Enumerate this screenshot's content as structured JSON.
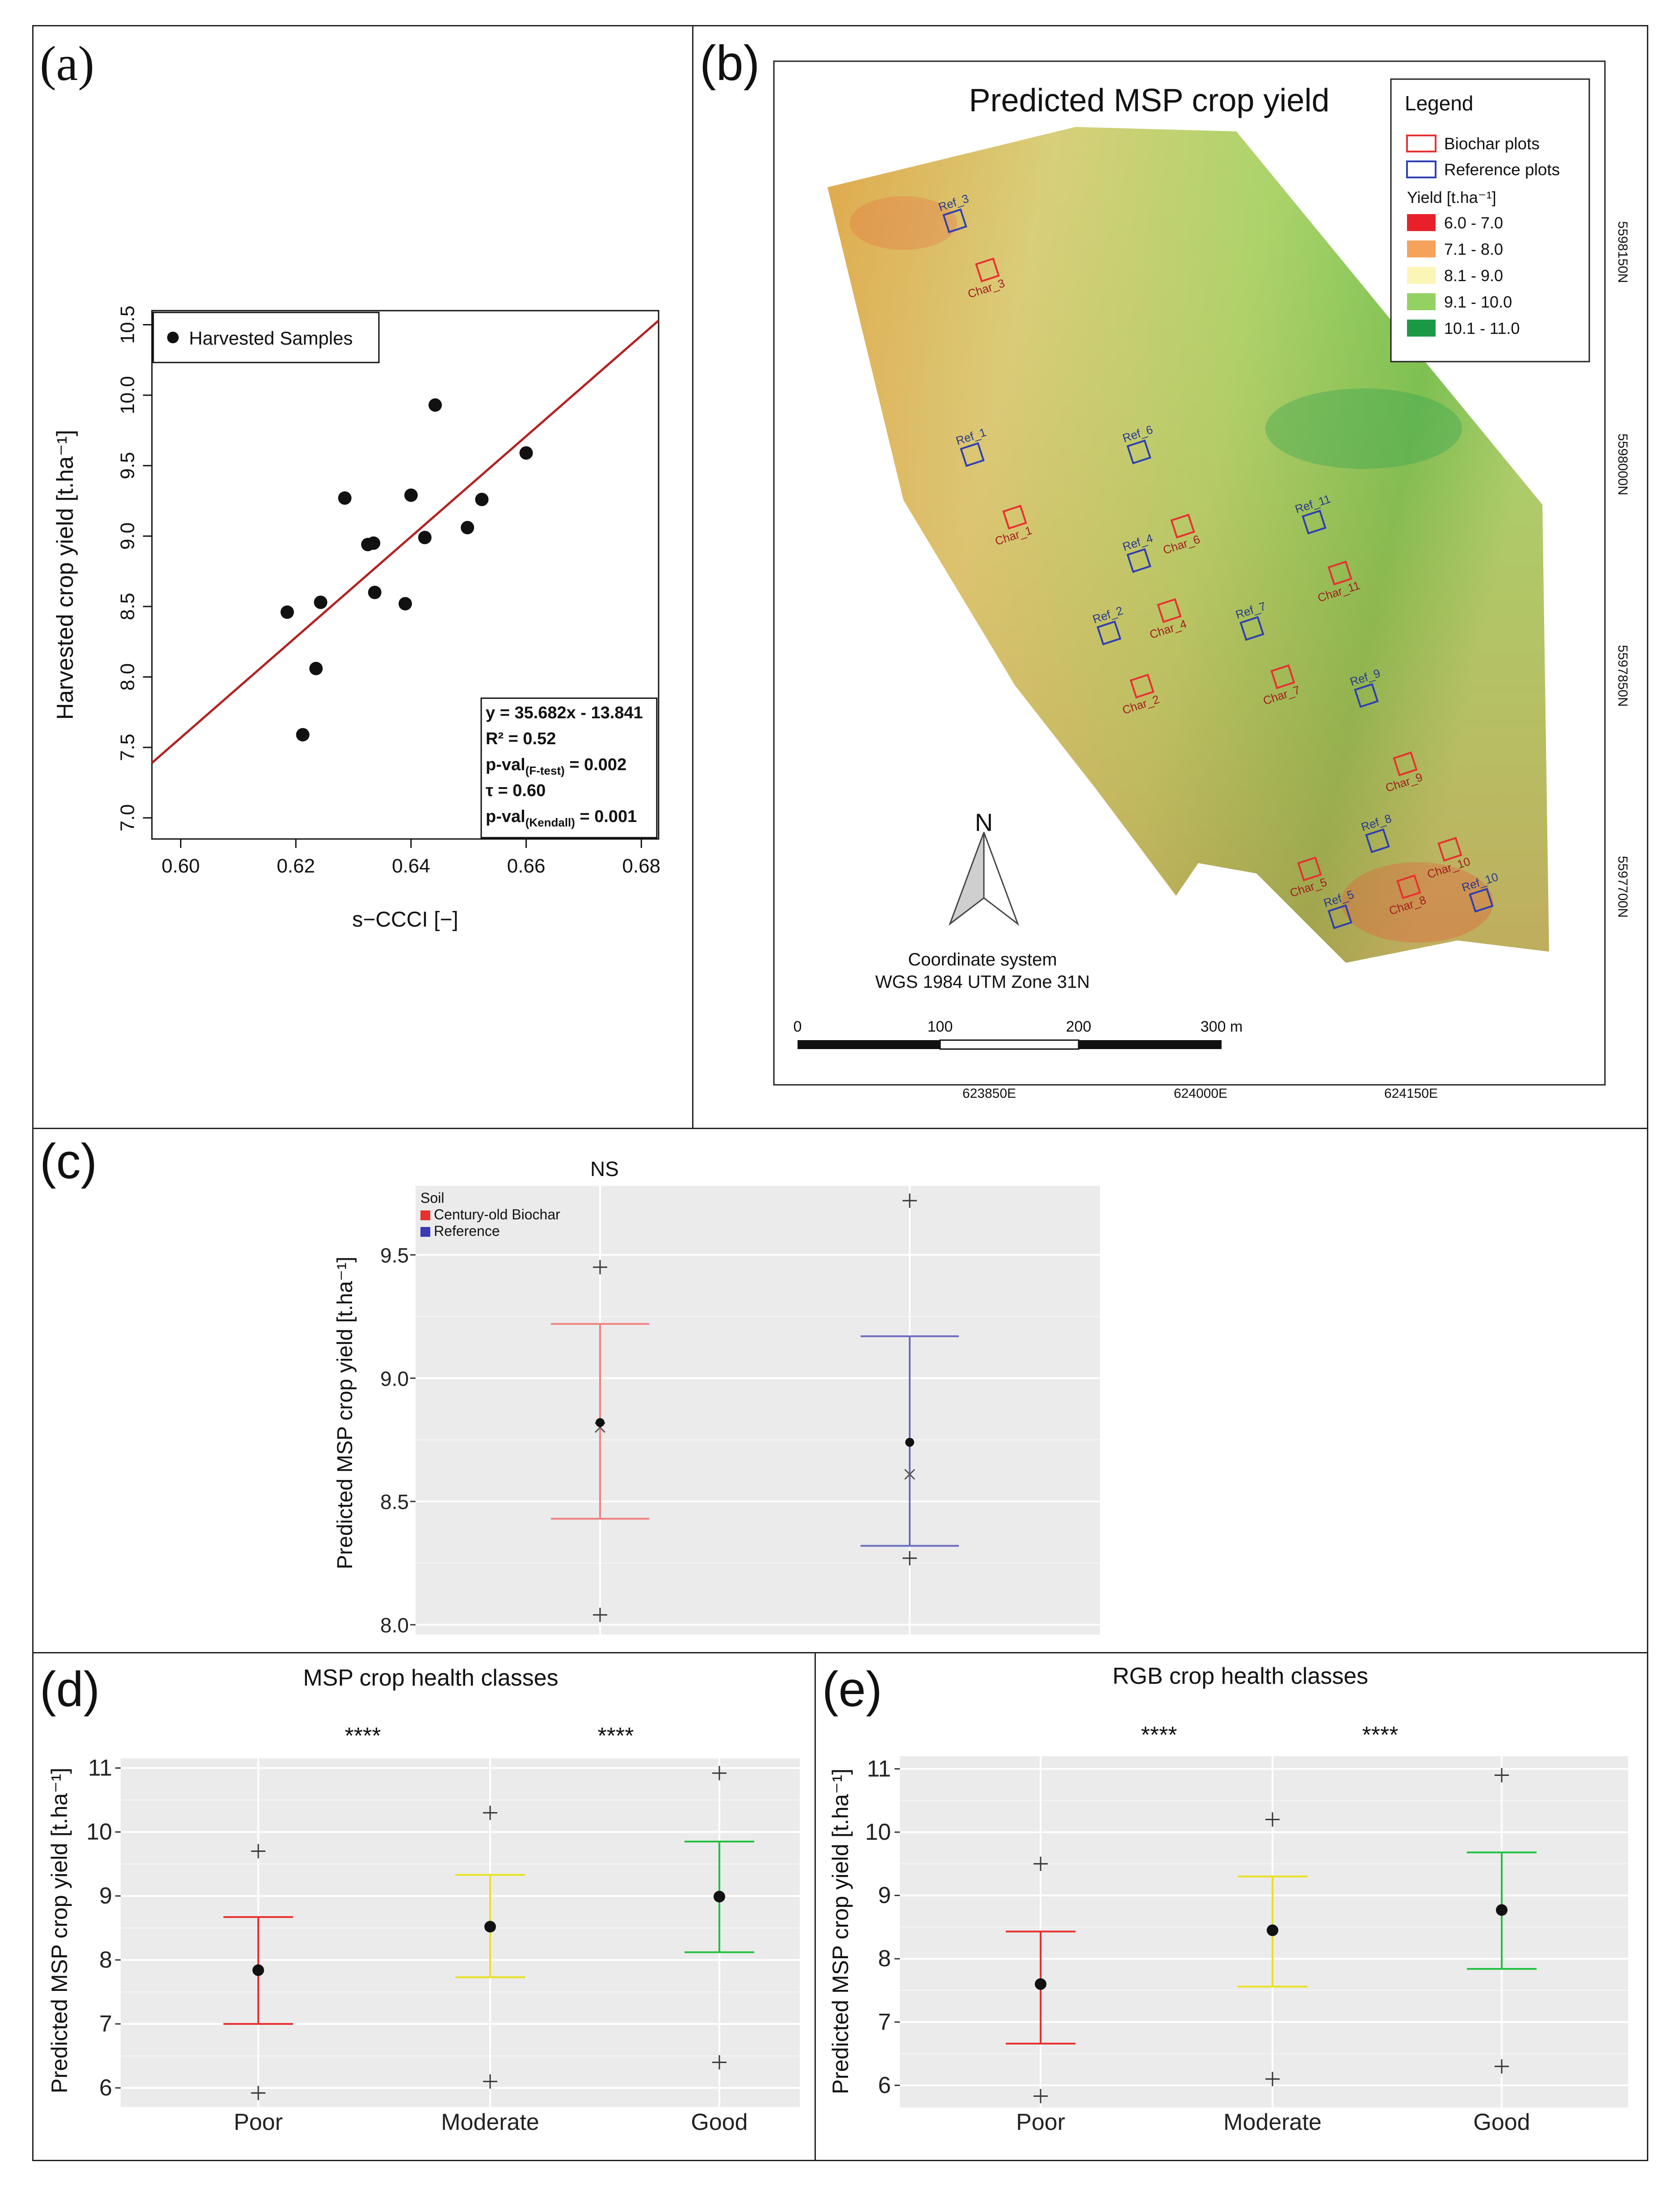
{
  "panels": {
    "a": {
      "label": "(a)",
      "chart_data": {
        "type": "scatter",
        "title": "",
        "xlabel": "s−CCCI [−]",
        "ylabel": "Harvested crop yield [t.ha⁻¹]",
        "xlim": [
          0.595,
          0.683
        ],
        "ylim": [
          6.85,
          10.6
        ],
        "xticks": [
          "0.60",
          "0.62",
          "0.64",
          "0.66",
          "0.68"
        ],
        "xtick_values": [
          0.6,
          0.62,
          0.64,
          0.66,
          0.68
        ],
        "yticks": [
          "7.0",
          "7.5",
          "8.0",
          "8.5",
          "9.0",
          "9.5",
          "10.0",
          "10.5"
        ],
        "ytick_values": [
          7.0,
          7.5,
          8.0,
          8.5,
          9.0,
          9.5,
          10.0,
          10.5
        ],
        "legend": "Harvested Samples",
        "points": [
          {
            "x": 0.6185,
            "y": 8.46
          },
          {
            "x": 0.6212,
            "y": 7.59
          },
          {
            "x": 0.6235,
            "y": 8.06
          },
          {
            "x": 0.6243,
            "y": 8.53
          },
          {
            "x": 0.6285,
            "y": 9.27
          },
          {
            "x": 0.6325,
            "y": 8.94
          },
          {
            "x": 0.6335,
            "y": 8.95
          },
          {
            "x": 0.6337,
            "y": 8.6
          },
          {
            "x": 0.639,
            "y": 8.52
          },
          {
            "x": 0.64,
            "y": 9.29
          },
          {
            "x": 0.6424,
            "y": 8.99
          },
          {
            "x": 0.6442,
            "y": 9.93
          },
          {
            "x": 0.6498,
            "y": 9.06
          },
          {
            "x": 0.6523,
            "y": 9.26
          },
          {
            "x": 0.66,
            "y": 9.59
          }
        ],
        "regression": {
          "slope": 35.682,
          "intercept": -13.841,
          "color": "#b22222"
        },
        "stats": [
          {
            "main": "y = 35.682x - 13.841",
            "sub": ""
          },
          {
            "main": "R² = 0.52",
            "sub": ""
          },
          {
            "main": "p-val",
            "sub": "(F-test)",
            "tail": " = 0.002"
          },
          {
            "main": "τ = 0.60",
            "sub": ""
          },
          {
            "main": "p-val",
            "sub": "(Kendall)",
            "tail": " = 0.001"
          }
        ]
      }
    },
    "b": {
      "label": "(b)",
      "title": "Predicted MSP crop yield",
      "legend": {
        "title": "Legend",
        "biochar": "Biochar plots",
        "reference": "Reference plots",
        "yield_title": "Yield [t.ha⁻¹]",
        "classes": [
          {
            "label": "6.0 - 7.0",
            "color": "#e8202a"
          },
          {
            "label": "7.1 - 8.0",
            "color": "#f5a35a"
          },
          {
            "label": "8.1 - 9.0",
            "color": "#fbf5b6"
          },
          {
            "label": "9.1 - 10.0",
            "color": "#93d262"
          },
          {
            "label": "10.1 - 11.0",
            "color": "#1b9a45"
          }
        ]
      },
      "northarrow": "N",
      "coordsys": [
        "Coordinate system",
        "WGS 1984 UTM Zone 31N"
      ],
      "scalebar": [
        "0",
        "100",
        "200",
        "300 m"
      ],
      "eastings": [
        "623850E",
        "624000E",
        "624150E"
      ],
      "northings": [
        "5598150N",
        "5598000N",
        "5597850N",
        "5597700N"
      ],
      "plots": [
        {
          "label": "Ref_3",
          "kind": "ref"
        },
        {
          "label": "Char_3",
          "kind": "char"
        },
        {
          "label": "Ref_1",
          "kind": "ref"
        },
        {
          "label": "Char_1",
          "kind": "char"
        },
        {
          "label": "Ref_6",
          "kind": "ref"
        },
        {
          "label": "Char_6",
          "kind": "char"
        },
        {
          "label": "Ref_4",
          "kind": "ref"
        },
        {
          "label": "Ref_11",
          "kind": "ref"
        },
        {
          "label": "Char_11",
          "kind": "char"
        },
        {
          "label": "Ref_2",
          "kind": "ref"
        },
        {
          "label": "Char_4",
          "kind": "char"
        },
        {
          "label": "Ref_7",
          "kind": "ref"
        },
        {
          "label": "Char_2",
          "kind": "char"
        },
        {
          "label": "Char_7",
          "kind": "char"
        },
        {
          "label": "Ref_9",
          "kind": "ref"
        },
        {
          "label": "Char_9",
          "kind": "char"
        },
        {
          "label": "Ref_8",
          "kind": "ref"
        },
        {
          "label": "Char_10",
          "kind": "char"
        },
        {
          "label": "Char_5",
          "kind": "char"
        },
        {
          "label": "Ref_5",
          "kind": "ref"
        },
        {
          "label": "Char_8",
          "kind": "char"
        },
        {
          "label": "Ref_10",
          "kind": "ref"
        }
      ]
    },
    "c": {
      "label": "(c)",
      "chart_data": {
        "type": "errorbar",
        "title": "NS",
        "xlabel": "",
        "ylabel": "Predicted MSP crop yield [t.ha⁻¹]",
        "ylim": [
          7.96,
          9.78
        ],
        "yticks": [
          "8.0",
          "8.5",
          "9.0",
          "9.5"
        ],
        "ytick_values": [
          8.0,
          8.5,
          9.0,
          9.5
        ],
        "legend_title": "Soil",
        "series": [
          {
            "name": "Century-old Biochar",
            "color": "#e8302f",
            "bar": "#f08080",
            "mean": 8.82,
            "median": 8.8,
            "lower": 8.43,
            "upper": 9.22,
            "min": 8.04,
            "max": 9.45
          },
          {
            "name": "Reference",
            "color": "#3a3ab8",
            "bar": "#6b6bbf",
            "mean": 8.74,
            "median": 8.61,
            "lower": 8.32,
            "upper": 9.17,
            "min": 8.27,
            "max": 9.72
          }
        ]
      }
    },
    "d": {
      "label": "(d)",
      "chart_data": {
        "type": "errorbar",
        "title": "MSP crop health classes",
        "ylabel": "Predicted MSP crop yield [t.ha⁻¹]",
        "ylim": [
          5.7,
          11.15
        ],
        "yticks": [
          "6",
          "7",
          "8",
          "9",
          "10",
          "11"
        ],
        "ytick_values": [
          6,
          7,
          8,
          9,
          10,
          11
        ],
        "categories": [
          "Poor",
          "Moderate",
          "Good"
        ],
        "significance": [
          "****",
          "****"
        ],
        "series": [
          {
            "name": "Poor",
            "color": "#e8302f",
            "mean": 7.84,
            "lower": 7.0,
            "upper": 8.67,
            "min": 5.92,
            "max": 9.7
          },
          {
            "name": "Moderate",
            "color": "#e8e020",
            "mean": 8.52,
            "lower": 7.73,
            "upper": 9.33,
            "min": 6.1,
            "max": 10.3
          },
          {
            "name": "Good",
            "color": "#22c040",
            "mean": 8.99,
            "lower": 8.12,
            "upper": 9.85,
            "min": 6.4,
            "max": 10.92
          }
        ]
      }
    },
    "e": {
      "label": "(e)",
      "chart_data": {
        "type": "errorbar",
        "title": "RGB crop health classes",
        "ylabel": "Predicted MSP crop yield [t.ha⁻¹]",
        "ylim": [
          5.65,
          11.2
        ],
        "yticks": [
          "6",
          "7",
          "8",
          "9",
          "10",
          "11"
        ],
        "ytick_values": [
          6,
          7,
          8,
          9,
          10,
          11
        ],
        "categories": [
          "Poor",
          "Moderate",
          "Good"
        ],
        "significance": [
          "****",
          "****"
        ],
        "series": [
          {
            "name": "Poor",
            "color": "#e8302f",
            "mean": 7.6,
            "lower": 6.66,
            "upper": 8.43,
            "min": 5.83,
            "max": 9.5
          },
          {
            "name": "Moderate",
            "color": "#e8e020",
            "mean": 8.45,
            "lower": 7.56,
            "upper": 9.3,
            "min": 6.1,
            "max": 10.2
          },
          {
            "name": "Good",
            "color": "#22c040",
            "mean": 8.77,
            "lower": 7.84,
            "upper": 9.68,
            "min": 6.3,
            "max": 10.9
          }
        ]
      }
    }
  }
}
